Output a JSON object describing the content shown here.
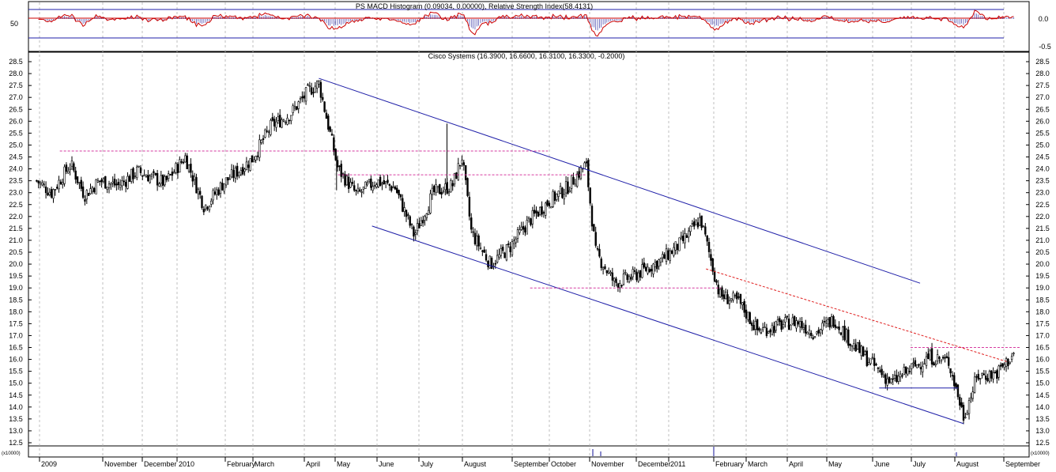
{
  "indicator_panel": {
    "title": "PS MACD Histogram (0.09034, 0.00000), Relative Strength Index(58.4131)",
    "left_tick": "50",
    "right_ticks": [
      "0.0",
      "-0.5"
    ]
  },
  "price_panel": {
    "title": "Cisco Systems (16.3900, 16.6600, 16.3100, 16.3300, -0.2000)"
  },
  "volume_panel": {
    "left_label": "(x10000)",
    "right_label": "(x10000)"
  },
  "colors": {
    "candles": "#000000",
    "channel": "#1f1fa8",
    "resistance": "#d63aa0",
    "rsi": "#cc0000",
    "macd_hist": "#3a3aa8",
    "grid": "#b0b0b0",
    "background": "#ffffff"
  },
  "chart_data": {
    "type": "candlestick",
    "ylim": [
      12.5,
      28.5
    ],
    "y_ticks": [
      "12.5",
      "13.0",
      "13.5",
      "14.0",
      "14.5",
      "15.0",
      "15.5",
      "16.0",
      "16.5",
      "17.0",
      "17.5",
      "18.0",
      "18.5",
      "19.0",
      "19.5",
      "20.0",
      "20.5",
      "21.0",
      "21.5",
      "22.0",
      "22.5",
      "23.0",
      "23.5",
      "24.0",
      "24.5",
      "25.0",
      "25.5",
      "26.0",
      "26.5",
      "27.0",
      "27.5",
      "28.0",
      "28.5"
    ],
    "x_labels": [
      "2009",
      "November",
      "December",
      "2010",
      "February",
      "March",
      "April",
      "May",
      "June",
      "July",
      "August",
      "September",
      "October",
      "November",
      "December",
      "2011",
      "February",
      "March",
      "April",
      "May",
      "June",
      "July",
      "August",
      "September"
    ],
    "close_path": [
      [
        "2009-09-28",
        23.5
      ],
      [
        "2009-10-09",
        23.0
      ],
      [
        "2009-10-23",
        24.2
      ],
      [
        "2009-11-02",
        22.9
      ],
      [
        "2009-11-13",
        23.5
      ],
      [
        "2009-11-27",
        23.3
      ],
      [
        "2009-12-11",
        23.9
      ],
      [
        "2009-12-31",
        23.4
      ],
      [
        "2010-01-15",
        24.5
      ],
      [
        "2010-01-29",
        22.4
      ],
      [
        "2010-02-12",
        23.4
      ],
      [
        "2010-03-05",
        24.4
      ],
      [
        "2010-03-19",
        25.8
      ],
      [
        "2010-04-02",
        26.3
      ],
      [
        "2010-04-16",
        27.3
      ],
      [
        "2010-04-23",
        27.6
      ],
      [
        "2010-05-07",
        24.0
      ],
      [
        "2010-05-21",
        22.9
      ],
      [
        "2010-06-04",
        23.5
      ],
      [
        "2010-06-18",
        23.2
      ],
      [
        "2010-07-02",
        21.2
      ],
      [
        "2010-07-16",
        23.0
      ],
      [
        "2010-07-30",
        23.3
      ],
      [
        "2010-08-06",
        24.5
      ],
      [
        "2010-08-13",
        21.3
      ],
      [
        "2010-08-27",
        20.0
      ],
      [
        "2010-09-10",
        20.7
      ],
      [
        "2010-09-24",
        21.8
      ],
      [
        "2010-10-08",
        22.6
      ],
      [
        "2010-10-22",
        23.2
      ],
      [
        "2010-11-05",
        24.2
      ],
      [
        "2010-11-12",
        20.5
      ],
      [
        "2010-11-26",
        19.2
      ],
      [
        "2010-12-10",
        19.5
      ],
      [
        "2010-12-31",
        20.2
      ],
      [
        "2011-01-14",
        20.9
      ],
      [
        "2011-01-28",
        21.9
      ],
      [
        "2011-02-11",
        18.7
      ],
      [
        "2011-02-25",
        18.4
      ],
      [
        "2011-03-11",
        17.2
      ],
      [
        "2011-03-25",
        17.4
      ],
      [
        "2011-04-08",
        17.6
      ],
      [
        "2011-04-22",
        17.1
      ],
      [
        "2011-05-06",
        17.7
      ],
      [
        "2011-05-20",
        16.6
      ],
      [
        "2011-06-03",
        15.8
      ],
      [
        "2011-06-17",
        15.0
      ],
      [
        "2011-07-01",
        15.6
      ],
      [
        "2011-07-15",
        16.1
      ],
      [
        "2011-07-29",
        15.9
      ],
      [
        "2011-08-09",
        13.6
      ],
      [
        "2011-08-19",
        15.3
      ],
      [
        "2011-09-02",
        15.4
      ],
      [
        "2011-09-16",
        16.3
      ]
    ],
    "trend_lines": [
      {
        "name": "upper channel",
        "from": [
          "2010-04-23",
          27.8
        ],
        "to": [
          "2011-07-08",
          19.2
        ]
      },
      {
        "name": "lower channel",
        "from": [
          "2010-06-01",
          21.6
        ],
        "to": [
          "2011-08-09",
          13.3
        ]
      }
    ],
    "support_resistance": [
      {
        "from": [
          "2009-10-15",
          24.75
        ],
        "to": [
          "2010-10-08",
          24.75
        ]
      },
      {
        "from": [
          "2010-05-07",
          23.75
        ],
        "to": [
          "2010-11-05",
          23.75
        ]
      },
      {
        "from": [
          "2010-09-25",
          19.0
        ],
        "to": [
          "2011-02-12",
          19.0
        ]
      },
      {
        "from": [
          "2011-07-01",
          16.5
        ],
        "to": [
          "2011-09-20",
          16.5
        ]
      },
      {
        "from": [
          "2011-02-01",
          19.8
        ],
        "to": [
          "2011-09-10",
          15.9
        ]
      }
    ],
    "rsi_reference": 50
  }
}
